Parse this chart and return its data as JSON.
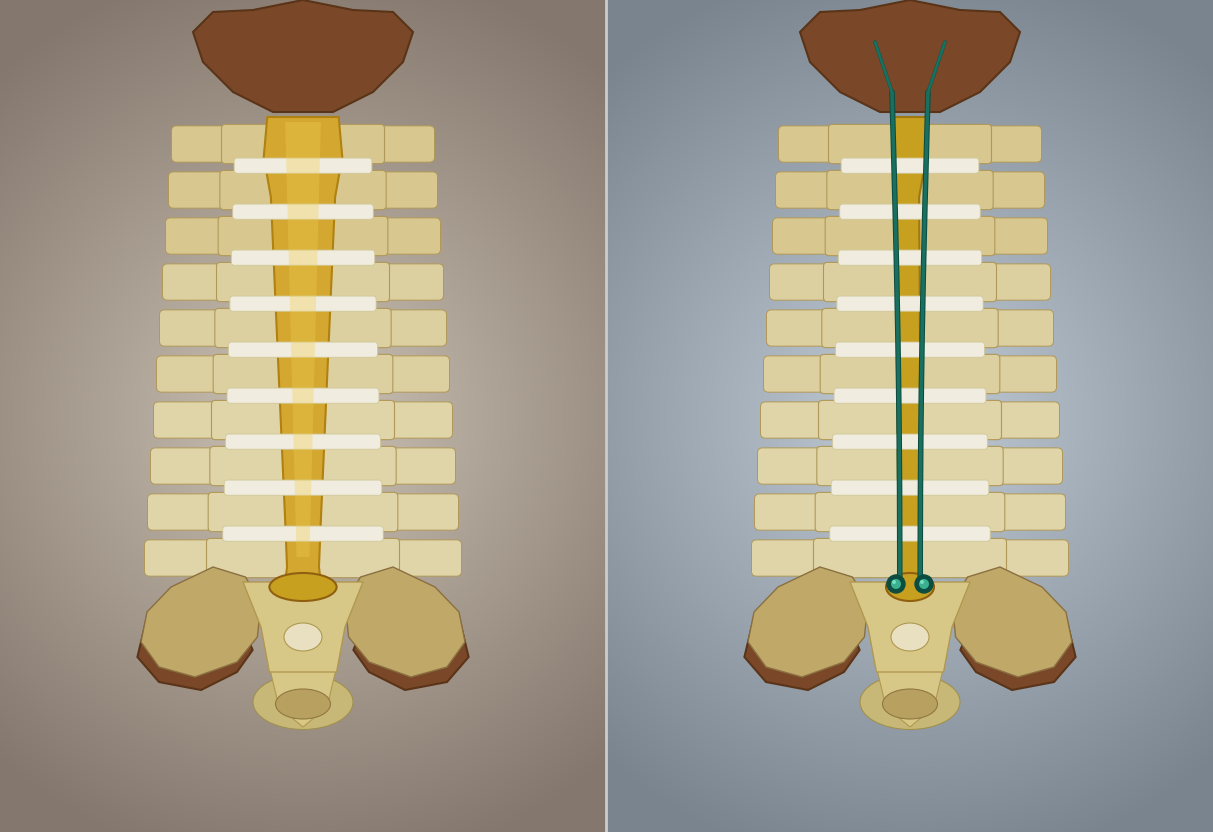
{
  "fig_width": 12.13,
  "fig_height": 8.32,
  "dpi": 100,
  "bone_dark": "#5a3418",
  "bone_brown": "#7a4828",
  "bone_mid": "#c8a878",
  "vertebra_tan": "#d8c890",
  "vertebra_light": "#e8ddb0",
  "disc_white": "#f0ede0",
  "canal_gold": "#d4a830",
  "canal_gold_light": "#e8c850",
  "nerve_teal": "#1a7060",
  "nerve_teal_dark": "#0d4d40",
  "divider_color": "#d0d0d0",
  "n_vertebrae": 10
}
